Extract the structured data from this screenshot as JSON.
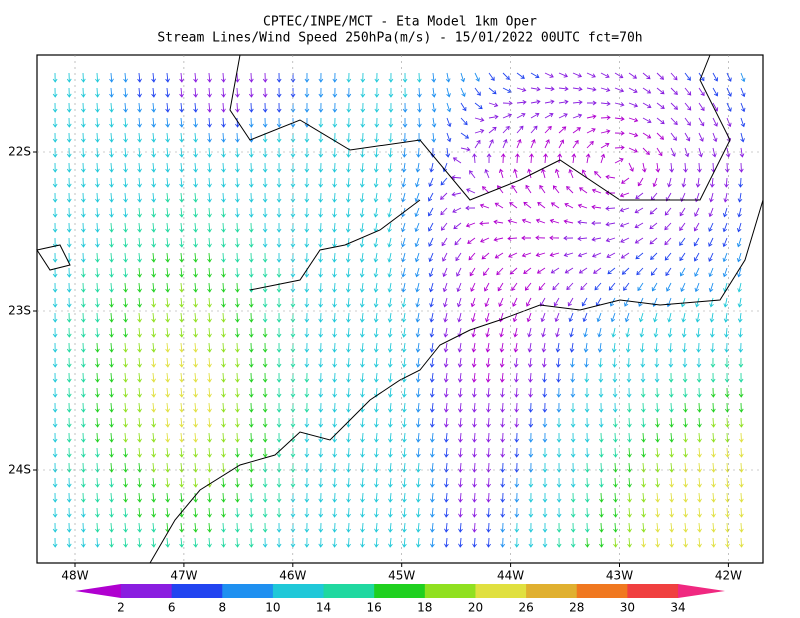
{
  "title": [
    "CPTEC/INPE/MCT -  Eta Model 1km Oper",
    "Stream Lines/Wind Speed 250hPa(m/s) - 15/01/2022 00UTC fct=70h"
  ],
  "map": {
    "lat_labels": [
      "22S",
      "23S",
      "24S"
    ],
    "lon_labels": [
      "48W",
      "47W",
      "46W",
      "45W",
      "44W",
      "43W",
      "42W"
    ]
  },
  "colorbar": {
    "labels": [
      2,
      6,
      8,
      10,
      14,
      16,
      18,
      20,
      26,
      28,
      30,
      34
    ],
    "colors": [
      "#b000d0",
      "#8a1ee0",
      "#2244f0",
      "#1f90f0",
      "#20c8d8",
      "#20d8a0",
      "#20d020",
      "#90e020",
      "#e0e040",
      "#e0b030",
      "#f07820",
      "#f04040",
      "#f02880"
    ]
  }
}
